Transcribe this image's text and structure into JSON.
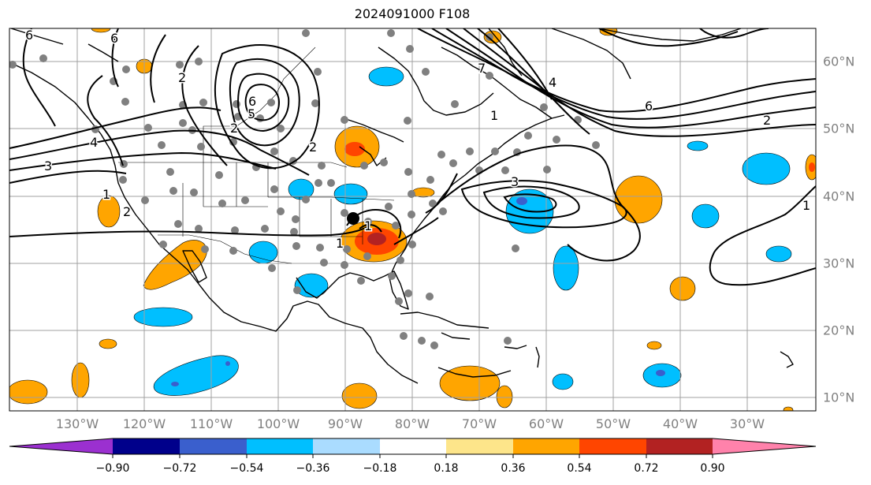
{
  "title": "2024091000 F108",
  "map": {
    "lon_ticks": [
      "130°W",
      "120°W",
      "110°W",
      "100°W",
      "90°W",
      "80°W",
      "70°W",
      "60°W",
      "50°W",
      "40°W",
      "30°W"
    ],
    "lat_ticks": [
      "60°N",
      "50°N",
      "40°N",
      "30°N",
      "20°N",
      "10°N"
    ],
    "lon_range": [
      -138,
      -18
    ],
    "lat_range": [
      8,
      65
    ],
    "gridlines": true,
    "marked_point": {
      "lon": -87.5,
      "lat": 37.0
    }
  },
  "contour_labels": [
    "6",
    "6",
    "6",
    "5",
    "4",
    "3",
    "3",
    "2",
    "2",
    "2",
    "2",
    "1",
    "1",
    "1",
    "1",
    "1",
    "2",
    "4",
    "7",
    "6"
  ],
  "colorbar": {
    "ticks": [
      "−0.90",
      "−0.72",
      "−0.54",
      "−0.36",
      "−0.18",
      "0.18",
      "0.36",
      "0.54",
      "0.72",
      "0.90"
    ],
    "colors": [
      "#9b30d0",
      "#00008b",
      "#3a5fcd",
      "#00bfff",
      "#aadcff",
      "#ffffff",
      "#fde58a",
      "#ffa500",
      "#ff4500",
      "#b22222",
      "#ff82ab"
    ]
  }
}
